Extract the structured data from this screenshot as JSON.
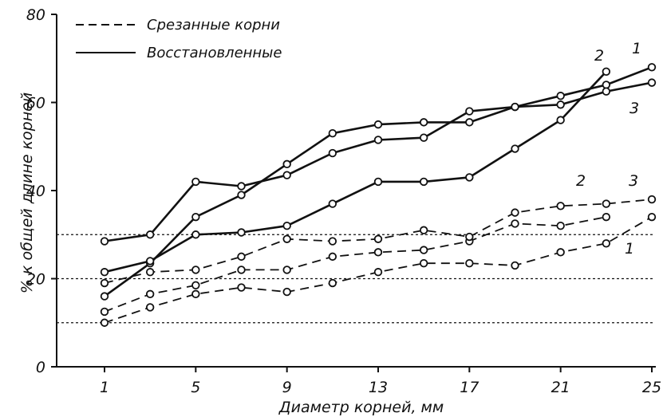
{
  "chart_data": {
    "type": "line",
    "xlabel": "Диаметр  корней, мм",
    "ylabel": "% к общей  длине  корней",
    "xlim": [
      0,
      25
    ],
    "ylim": [
      0,
      80
    ],
    "x_ticks": [
      "1",
      "5",
      "9",
      "13",
      "17",
      "21",
      "25"
    ],
    "y_ticks": [
      "0",
      "20",
      "40",
      "60",
      "80"
    ],
    "reference_lines": [
      10,
      20,
      30
    ],
    "legend": {
      "placement": "top-left",
      "items": [
        {
          "label": "Срезанные  корни",
          "style": "dashed"
        },
        {
          "label": "Восстановленные",
          "style": "solid"
        }
      ]
    },
    "series": [
      {
        "group": "Восстановленные",
        "label": "1",
        "style": "solid",
        "points": [
          [
            1,
            16
          ],
          [
            3,
            23.5
          ],
          [
            5,
            34
          ],
          [
            7,
            39
          ],
          [
            9,
            46
          ],
          [
            11,
            53
          ],
          [
            13,
            55
          ],
          [
            15,
            55.5
          ],
          [
            17,
            55.5
          ],
          [
            19,
            59
          ],
          [
            21,
            61.5
          ],
          [
            23,
            64
          ],
          [
            25,
            68
          ]
        ]
      },
      {
        "group": "Восстановленные",
        "label": "2",
        "style": "solid",
        "points": [
          [
            1,
            21.5
          ],
          [
            3,
            24
          ],
          [
            5,
            30
          ],
          [
            7,
            30.5
          ],
          [
            9,
            32
          ],
          [
            11,
            37
          ],
          [
            13,
            42
          ],
          [
            15,
            42
          ],
          [
            17,
            43
          ],
          [
            19,
            49.5
          ],
          [
            21,
            56
          ],
          [
            23,
            67
          ]
        ]
      },
      {
        "group": "Восстановленные",
        "label": "3",
        "style": "solid",
        "points": [
          [
            1,
            28.5
          ],
          [
            3,
            30
          ],
          [
            5,
            42
          ],
          [
            7,
            41
          ],
          [
            9,
            43.5
          ],
          [
            11,
            48.5
          ],
          [
            13,
            51.5
          ],
          [
            15,
            52
          ],
          [
            17,
            58
          ],
          [
            19,
            59
          ],
          [
            21,
            59.5
          ],
          [
            23,
            62.5
          ],
          [
            25,
            64.5
          ]
        ]
      },
      {
        "group": "Срезанные корни",
        "label": "1",
        "style": "dashed",
        "points": [
          [
            1,
            10
          ],
          [
            3,
            13.5
          ],
          [
            5,
            16.5
          ],
          [
            7,
            18
          ],
          [
            9,
            17
          ],
          [
            11,
            19
          ],
          [
            13,
            21.5
          ],
          [
            15,
            23.5
          ],
          [
            17,
            23.5
          ],
          [
            19,
            23
          ],
          [
            21,
            26
          ],
          [
            23,
            28
          ],
          [
            25,
            34
          ]
        ]
      },
      {
        "group": "Срезанные корни",
        "label": "2",
        "style": "dashed",
        "points": [
          [
            1,
            12.5
          ],
          [
            3,
            16.5
          ],
          [
            5,
            18.5
          ],
          [
            7,
            22
          ],
          [
            9,
            22
          ],
          [
            11,
            25
          ],
          [
            13,
            26
          ],
          [
            15,
            26.5
          ],
          [
            17,
            28.5
          ],
          [
            19,
            32.5
          ],
          [
            21,
            32
          ],
          [
            23,
            34
          ]
        ]
      },
      {
        "group": "Срезанные корни",
        "label": "3",
        "style": "dashed",
        "points": [
          [
            1,
            19
          ],
          [
            3,
            21.5
          ],
          [
            5,
            22
          ],
          [
            7,
            25
          ],
          [
            9,
            29
          ],
          [
            11,
            28.5
          ],
          [
            13,
            29
          ],
          [
            15,
            31
          ],
          [
            17,
            29.5
          ],
          [
            19,
            35
          ],
          [
            21,
            36.5
          ],
          [
            23,
            37
          ],
          [
            25,
            38
          ]
        ]
      }
    ]
  }
}
